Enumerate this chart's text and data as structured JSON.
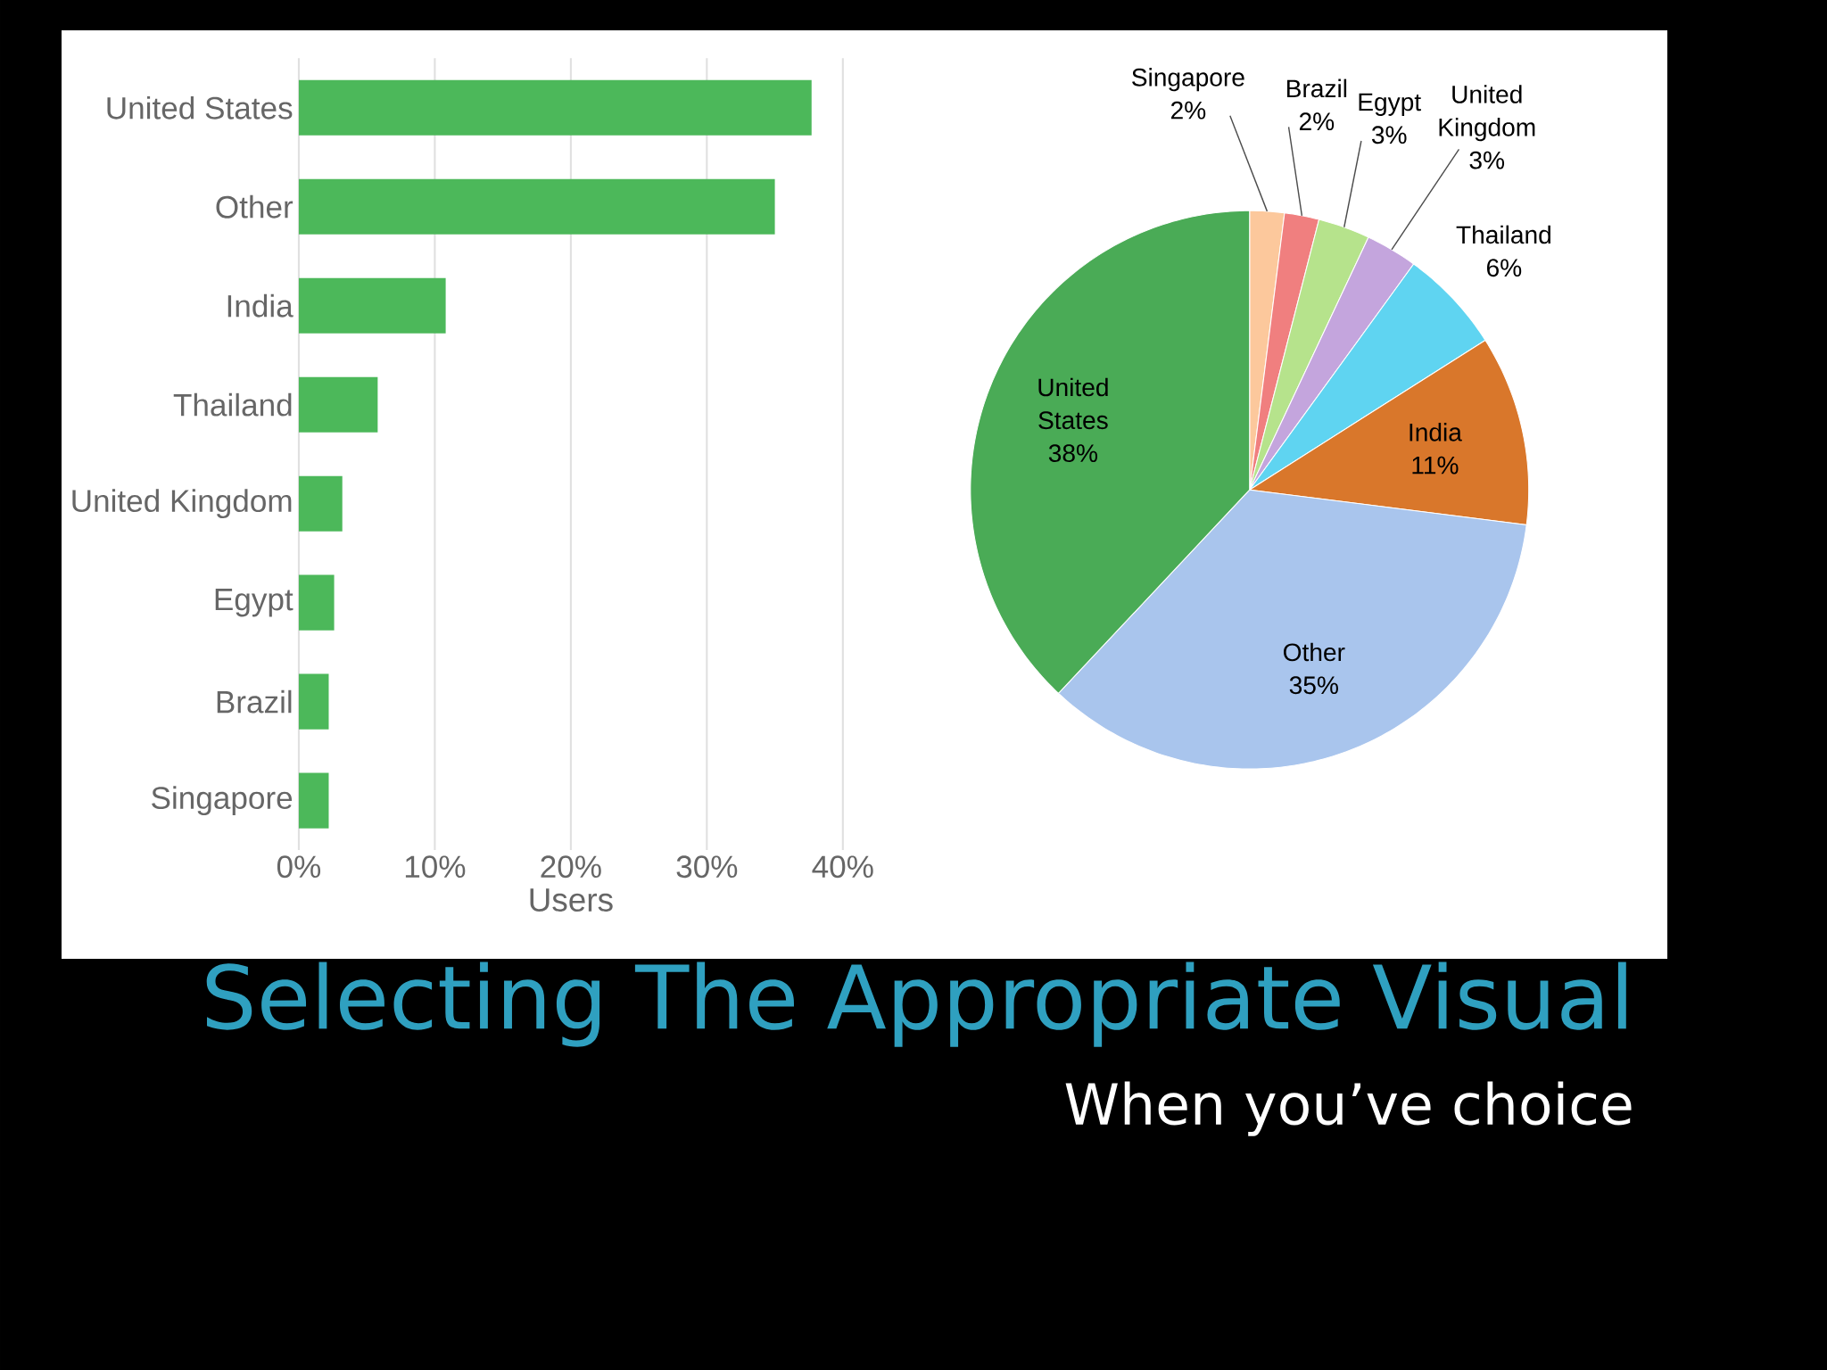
{
  "chart_data": [
    {
      "type": "bar",
      "orientation": "horizontal",
      "categories": [
        "United States",
        "Other",
        "India",
        "Thailand",
        "United Kingdom",
        "Egypt",
        "Brazil",
        "Singapore"
      ],
      "values": [
        37.7,
        35,
        10.8,
        5.8,
        3.2,
        2.6,
        2.2,
        2.2
      ],
      "color": "#4cb85a",
      "xlabel": "Users",
      "xlim": [
        0,
        40
      ],
      "xticks": [
        {
          "value": 0,
          "label": "0%"
        },
        {
          "value": 10,
          "label": "10%"
        },
        {
          "value": 20,
          "label": "20%"
        },
        {
          "value": 30,
          "label": "30%"
        },
        {
          "value": 40,
          "label": "40%"
        }
      ],
      "grid": "x"
    },
    {
      "type": "pie",
      "title": "Selecting The Appropriate Visual",
      "subtitle": "When you’ve choice",
      "categories": [
        "Singapore",
        "Brazil",
        "Egypt",
        "United Kingdom",
        "Thailand",
        "India",
        "Other",
        "United States"
      ],
      "values": [
        2,
        2,
        3,
        3,
        6,
        11,
        35,
        38
      ],
      "value_labels": [
        "2%",
        "2%",
        "3%",
        "3%",
        "6%",
        "11%",
        "35%",
        "38%"
      ],
      "colors": [
        "#fcc89c",
        "#f07f7f",
        "#b6e38c",
        "#c4a5dd",
        "#5fd4f1",
        "#d9772b",
        "#a9c5ed",
        "#4aab56"
      ]
    }
  ]
}
